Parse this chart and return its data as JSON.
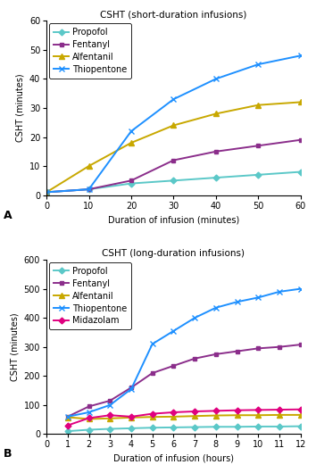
{
  "panel_A": {
    "title": "CSHT (short-duration infusions)",
    "xlabel": "Duration of infusion (minutes)",
    "ylabel": "CSHT (minutes)",
    "xlim": [
      0,
      60
    ],
    "ylim": [
      0,
      60
    ],
    "xticks": [
      0,
      10,
      20,
      30,
      40,
      50,
      60
    ],
    "yticks": [
      0,
      10,
      20,
      30,
      40,
      50,
      60
    ],
    "label": "A",
    "series": {
      "Propofol": {
        "x": [
          0,
          10,
          20,
          30,
          40,
          50,
          60
        ],
        "y": [
          1,
          2,
          4,
          5,
          6,
          7,
          8
        ],
        "color": "#5BC8C8",
        "marker": "D",
        "markersize": 3.5,
        "linewidth": 1.4
      },
      "Fentanyl": {
        "x": [
          0,
          10,
          20,
          30,
          40,
          50,
          60
        ],
        "y": [
          1,
          2,
          5,
          12,
          15,
          17,
          19
        ],
        "color": "#8B2E8B",
        "marker": "s",
        "markersize": 3.5,
        "linewidth": 1.4
      },
      "Alfentanil": {
        "x": [
          0,
          10,
          20,
          30,
          40,
          50,
          60
        ],
        "y": [
          1,
          10,
          18,
          24,
          28,
          31,
          32
        ],
        "color": "#C8A800",
        "marker": "^",
        "markersize": 4,
        "linewidth": 1.4
      },
      "Thiopentone": {
        "x": [
          0,
          10,
          20,
          30,
          40,
          50,
          60
        ],
        "y": [
          1,
          2,
          22,
          33,
          40,
          45,
          48
        ],
        "color": "#1E90FF",
        "marker": "x",
        "markersize": 5,
        "linewidth": 1.4
      }
    }
  },
  "panel_B": {
    "title": "CSHT (long-duration infusions)",
    "xlabel": "Duration of infusion (hours)",
    "ylabel": "CSHT (minutes)",
    "xlim": [
      0,
      12
    ],
    "ylim": [
      0,
      600
    ],
    "xticks": [
      0,
      1,
      2,
      3,
      4,
      5,
      6,
      7,
      8,
      9,
      10,
      11,
      12
    ],
    "yticks": [
      0,
      100,
      200,
      300,
      400,
      500,
      600
    ],
    "label": "B",
    "series": {
      "Propofol": {
        "x": [
          1,
          2,
          3,
          4,
          5,
          6,
          7,
          8,
          9,
          10,
          11,
          12
        ],
        "y": [
          10,
          15,
          18,
          20,
          22,
          23,
          24,
          25,
          25,
          26,
          26,
          27
        ],
        "color": "#5BC8C8",
        "marker": "D",
        "markersize": 3.5,
        "linewidth": 1.4
      },
      "Fentanyl": {
        "x": [
          1,
          2,
          3,
          4,
          5,
          6,
          7,
          8,
          9,
          10,
          11,
          12
        ],
        "y": [
          60,
          95,
          115,
          160,
          210,
          235,
          260,
          275,
          285,
          295,
          300,
          308
        ],
        "color": "#8B2E8B",
        "marker": "s",
        "markersize": 3.5,
        "linewidth": 1.4
      },
      "Alfentanil": {
        "x": [
          1,
          2,
          3,
          4,
          5,
          6,
          7,
          8,
          9,
          10,
          11,
          12
        ],
        "y": [
          58,
          52,
          54,
          57,
          59,
          60,
          62,
          64,
          65,
          65,
          66,
          66
        ],
        "color": "#C8A800",
        "marker": "^",
        "markersize": 4,
        "linewidth": 1.4
      },
      "Thiopentone": {
        "x": [
          1,
          2,
          3,
          4,
          5,
          6,
          7,
          8,
          9,
          10,
          11,
          12
        ],
        "y": [
          60,
          75,
          100,
          155,
          310,
          355,
          400,
          435,
          455,
          470,
          490,
          500
        ],
        "color": "#1E90FF",
        "marker": "x",
        "markersize": 5,
        "linewidth": 1.4
      },
      "Midazolam": {
        "x": [
          1,
          2,
          3,
          4,
          5,
          6,
          7,
          8,
          9,
          10,
          11,
          12
        ],
        "y": [
          30,
          55,
          65,
          60,
          70,
          75,
          78,
          80,
          82,
          83,
          84,
          85
        ],
        "color": "#E0007F",
        "marker": "D",
        "markersize": 3.5,
        "linewidth": 1.4
      }
    }
  },
  "background_color": "#FFFFFF",
  "font_size": 7,
  "title_font_size": 7.5,
  "label_font_size": 7
}
